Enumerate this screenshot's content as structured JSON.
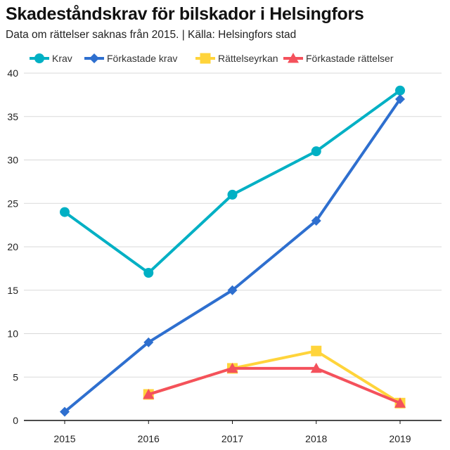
{
  "chart_data": {
    "type": "line",
    "title": "Skadeståndskrav för bilskador i Helsingfors",
    "subtitle": "Data om rättelser saknas från 2015. | Källa: Helsingfors stad",
    "categories": [
      "2015",
      "2016",
      "2017",
      "2018",
      "2019"
    ],
    "ylim": [
      0,
      40
    ],
    "yticks": [
      0,
      5,
      10,
      15,
      20,
      25,
      30,
      35,
      40
    ],
    "xlabel": "",
    "ylabel": "",
    "grid": true,
    "legend_position": "top",
    "series": [
      {
        "name": "Krav",
        "color": "#00b0c4",
        "marker": "circle",
        "values": [
          24,
          17,
          26,
          31,
          38
        ]
      },
      {
        "name": "Förkastade krav",
        "color": "#2e6fcf",
        "marker": "diamond",
        "values": [
          1,
          9,
          15,
          23,
          37
        ]
      },
      {
        "name": "Rättelseyrkan",
        "color": "#ffd43b",
        "marker": "square",
        "values": [
          null,
          3,
          6,
          8,
          2
        ]
      },
      {
        "name": "Förkastade rättelser",
        "color": "#f4515c",
        "marker": "triangle",
        "values": [
          null,
          3,
          6,
          6,
          2
        ]
      }
    ]
  }
}
